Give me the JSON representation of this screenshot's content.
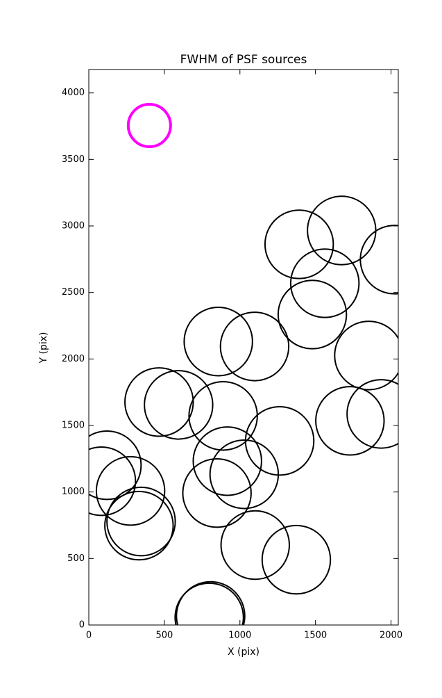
{
  "chart_data": {
    "type": "scatter",
    "title": "FWHM of PSF sources",
    "x_label": "X (pix)",
    "y_label": "Y (pix)",
    "xlim": [
      0,
      2048
    ],
    "ylim": [
      0,
      4176
    ],
    "xticks": [
      0,
      500,
      1000,
      1500,
      2000
    ],
    "yticks": [
      0,
      500,
      1000,
      1500,
      2000,
      2500,
      3000,
      3500,
      4000
    ],
    "series": [
      {
        "color": "#ff00ff",
        "x": [
          401
        ],
        "y": [
          3755
        ],
        "sizes": [
          140
        ]
      },
      {
        "color": "#000000",
        "x": [
          1392,
          1673,
          2023,
          1562,
          1479,
          857,
          1097,
          1853,
          465,
          594,
          889,
          1728,
          1935,
          1263,
          120,
          83,
          917,
          1028,
          276,
          848,
          346,
          332,
          1101,
          1373,
          806,
          797
        ],
        "y": [
          2862,
          2966,
          2747,
          2569,
          2334,
          2131,
          2094,
          2026,
          1676,
          1655,
          1572,
          1535,
          1587,
          1384,
          1201,
          1081,
          1232,
          1133,
          1008,
          992,
          778,
          747,
          601,
          491,
          68,
          57
        ],
        "sizes": [
          226,
          226,
          226,
          226,
          226,
          226,
          226,
          226,
          226,
          226,
          226,
          226,
          226,
          226,
          226,
          226,
          226,
          226,
          226,
          226,
          226,
          226,
          226,
          226,
          226,
          226
        ]
      }
    ]
  }
}
